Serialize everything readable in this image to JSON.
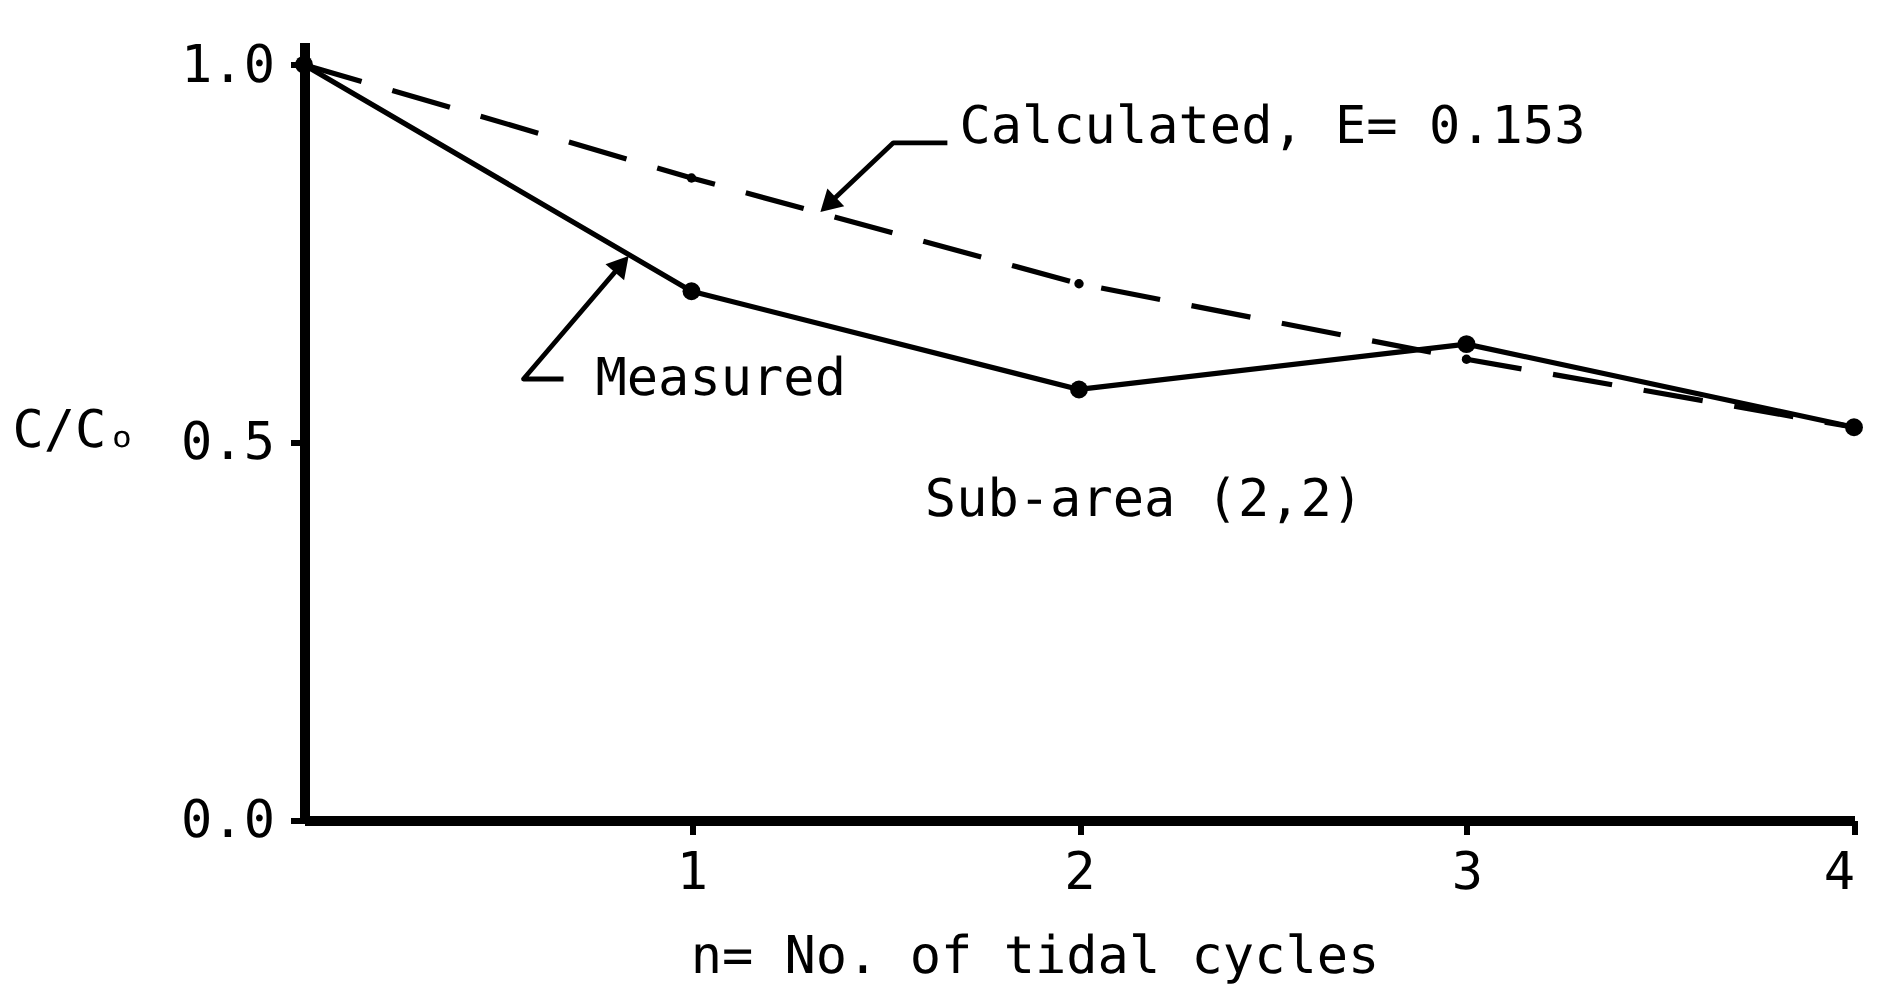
{
  "chart_data": {
    "type": "line",
    "xlabel": "n= No. of tidal cycles",
    "ylabel": "C/Cₒ",
    "x": [
      0,
      1,
      2,
      3,
      4
    ],
    "series": [
      {
        "name": "Calculated, E= 0.153",
        "color": "#000000",
        "values": [
          1.0,
          0.85,
          0.71,
          0.61,
          0.52
        ],
        "line_style": "dashed",
        "marker": "circle"
      },
      {
        "name": "Measured",
        "color": "#000000",
        "values": [
          1.0,
          0.7,
          0.57,
          0.63,
          0.52
        ],
        "line_style": "solid",
        "marker": "circle"
      }
    ],
    "xlim": [
      0,
      4
    ],
    "ylim": [
      0,
      1.03
    ],
    "xticks": [
      1,
      2,
      3,
      4
    ],
    "yticks": [
      {
        "value": 0,
        "label": "0.0"
      },
      {
        "value": 0.5,
        "label": "0.5"
      },
      {
        "value": 1,
        "label": "1.0"
      }
    ],
    "annotations": [
      "Sub-area (2,2)"
    ]
  }
}
